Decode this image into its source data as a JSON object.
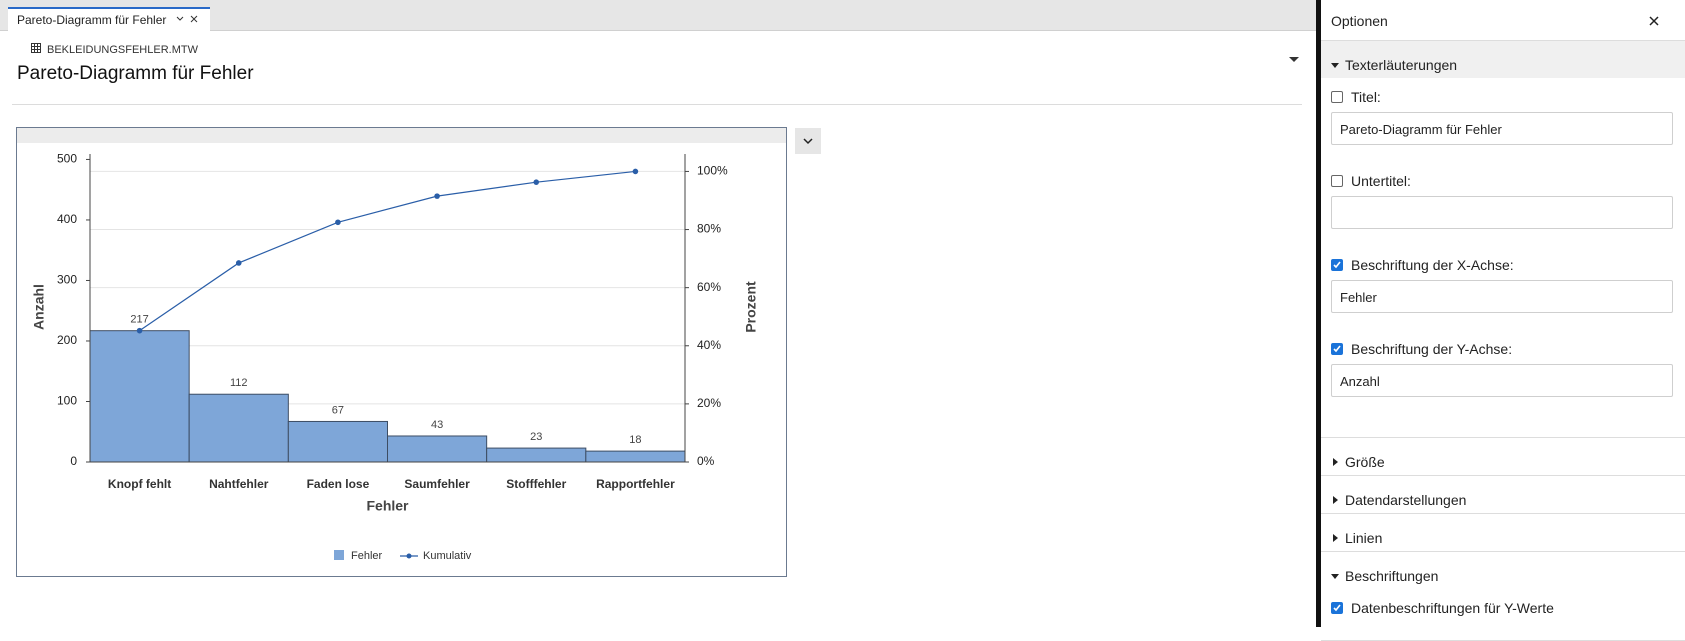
{
  "tab": {
    "title": "Pareto-Diagramm für Fehler"
  },
  "header": {
    "file": "BEKLEIDUNGSFEHLER.MTW",
    "title": "Pareto-Diagramm für Fehler"
  },
  "chart_data": {
    "type": "pareto",
    "categories": [
      "Knopf fehlt",
      "Nahtfehler",
      "Faden lose",
      "Saumfehler",
      "Stofffehler",
      "Rapportfehler"
    ],
    "series": [
      {
        "name": "Fehler",
        "color": "#7ea6d8",
        "values": [
          217,
          112,
          67,
          43,
          23,
          18
        ]
      },
      {
        "name": "Kumulativ",
        "color": "#2a5ea8",
        "axis": "y2",
        "values": [
          45.2,
          68.5,
          82.5,
          91.5,
          96.3,
          100
        ]
      }
    ],
    "x_label": "Fehler",
    "y_label": "Anzahl",
    "y2_label": "Prozent",
    "ylim": [
      0,
      509
    ],
    "yticks": [
      0,
      100,
      200,
      300,
      400,
      500
    ],
    "y2lim": [
      0,
      106
    ],
    "y2ticks": [
      {
        "value": 0,
        "label": "0%"
      },
      {
        "value": 20,
        "label": "20%"
      },
      {
        "value": 40,
        "label": "40%"
      },
      {
        "value": 60,
        "label": "60%"
      },
      {
        "value": 80,
        "label": "80%"
      },
      {
        "value": 100,
        "label": "100%"
      }
    ],
    "grid": true
  },
  "options": {
    "title": "Optionen",
    "sections": [
      {
        "label": "Texterläuterungen",
        "expanded": true,
        "fields": [
          {
            "label": "Titel:",
            "checked": false,
            "value": "Pareto-Diagramm für Fehler"
          },
          {
            "label": "Untertitel:",
            "checked": false
          },
          {
            "label": "Beschriftung der X-Achse:",
            "checked": true,
            "value": "Fehler"
          },
          {
            "label": "Beschriftung der Y-Achse:",
            "checked": true,
            "value": "Anzahl"
          }
        ]
      },
      {
        "label": "Größe",
        "expanded": false
      },
      {
        "label": "Datendarstellungen",
        "expanded": false
      },
      {
        "label": "Linien",
        "expanded": false
      },
      {
        "label": "Beschriftungen",
        "expanded": true,
        "fields": [
          {
            "label": "Datenbeschriftungen für Y-Werte",
            "checked": true
          }
        ]
      }
    ]
  }
}
